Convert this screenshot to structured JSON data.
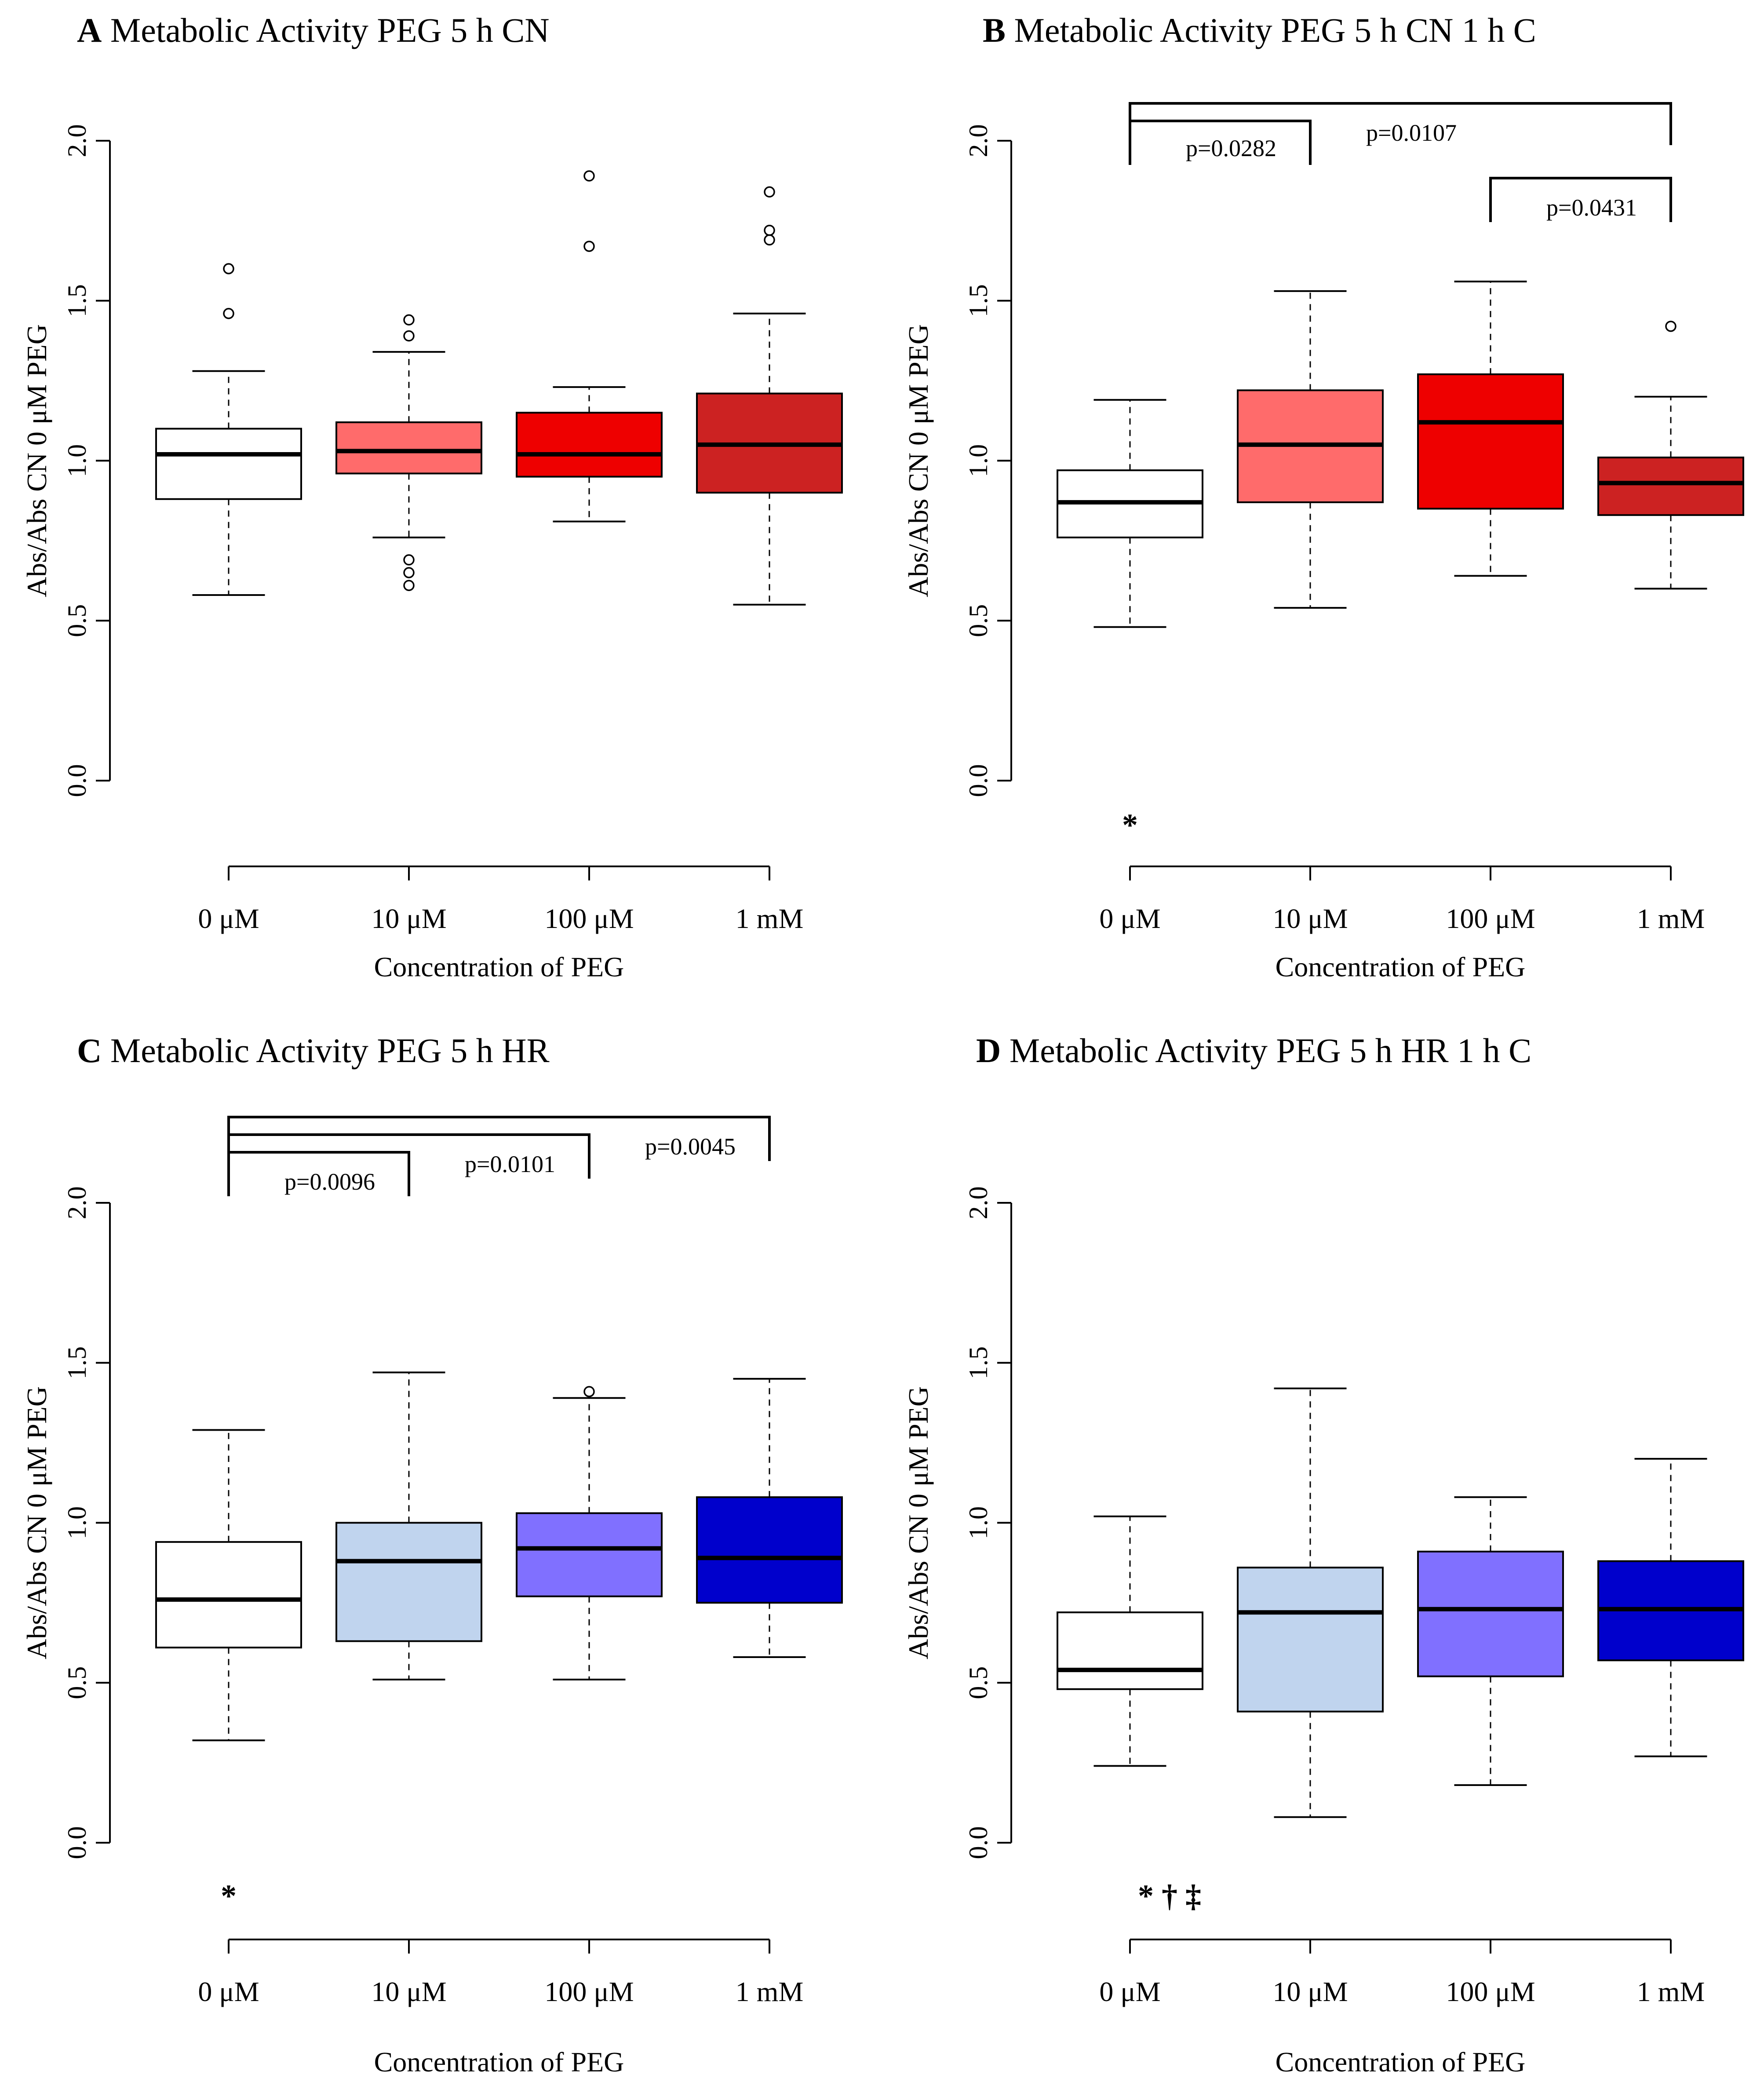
{
  "figure": {
    "ylabel": "Abs/Abs CN 0 μM PEG",
    "xlabel": "Concentration of PEG"
  },
  "chart_data": [
    {
      "type": "boxplot",
      "panel": "A",
      "title": "Metabolic Activity PEG 5 h CN",
      "xlabel": "Concentration of PEG",
      "ylabel": "Abs/Abs CN 0 μM PEG",
      "ylim": [
        0,
        2
      ],
      "yticks": [
        "0.0",
        "0.5",
        "1.0",
        "1.5",
        "2.0"
      ],
      "categories": [
        "0 μM",
        "10 μM",
        "100 μM",
        "1 mM"
      ],
      "colors": [
        "#ffffff",
        "#ff6b6b",
        "#ee0000",
        "#cc2222"
      ],
      "boxes": [
        {
          "min": 0.58,
          "q1": 0.88,
          "median": 1.02,
          "q3": 1.1,
          "max": 1.28,
          "outliers": [
            1.46,
            1.6
          ]
        },
        {
          "min": 0.76,
          "q1": 0.96,
          "median": 1.03,
          "q3": 1.12,
          "max": 1.34,
          "outliers": [
            0.61,
            0.65,
            0.69,
            1.39,
            1.44
          ]
        },
        {
          "min": 0.81,
          "q1": 0.95,
          "median": 1.02,
          "q3": 1.15,
          "max": 1.23,
          "outliers": [
            1.67,
            1.89
          ]
        },
        {
          "min": 0.55,
          "q1": 0.9,
          "median": 1.05,
          "q3": 1.21,
          "max": 1.46,
          "outliers": [
            1.69,
            1.72,
            1.84
          ]
        }
      ],
      "brackets": [],
      "markers": []
    },
    {
      "type": "boxplot",
      "panel": "B",
      "title": "Metabolic Activity PEG 5 h CN 1 h C",
      "xlabel": "Concentration of PEG",
      "ylabel": "Abs/Abs CN 0 μM PEG",
      "ylim": [
        0,
        2
      ],
      "yticks": [
        "0.0",
        "0.5",
        "1.0",
        "1.5",
        "2.0"
      ],
      "categories": [
        "0 μM",
        "10 μM",
        "100 μM",
        "1 mM"
      ],
      "colors": [
        "#ffffff",
        "#ff6b6b",
        "#ee0000",
        "#cc2222"
      ],
      "boxes": [
        {
          "min": 0.48,
          "q1": 0.76,
          "median": 0.87,
          "q3": 0.97,
          "max": 1.19,
          "outliers": []
        },
        {
          "min": 0.54,
          "q1": 0.87,
          "median": 1.05,
          "q3": 1.22,
          "max": 1.53,
          "outliers": []
        },
        {
          "min": 0.64,
          "q1": 0.85,
          "median": 1.12,
          "q3": 1.27,
          "max": 1.56,
          "outliers": []
        },
        {
          "min": 0.6,
          "q1": 0.83,
          "median": 0.93,
          "q3": 1.01,
          "max": 1.2,
          "outliers": [
            1.42
          ]
        }
      ],
      "brackets": [
        {
          "from": 0,
          "to": 3,
          "label": "p=0.0107"
        },
        {
          "from": 0,
          "to": 1,
          "label": "p=0.0282"
        },
        {
          "from": 2,
          "to": 3,
          "label": "p=0.0431"
        }
      ],
      "markers": [
        {
          "category": 0,
          "text": "*"
        }
      ]
    },
    {
      "type": "boxplot",
      "panel": "C",
      "title": "Metabolic Activity PEG 5 h HR",
      "xlabel": "Concentration of PEG",
      "ylabel": "Abs/Abs CN 0 μM PEG",
      "ylim": [
        0,
        2
      ],
      "yticks": [
        "0.0",
        "0.5",
        "1.0",
        "1.5",
        "2.0"
      ],
      "categories": [
        "0 μM",
        "10 μM",
        "100 μM",
        "1 mM"
      ],
      "colors": [
        "#ffffff",
        "#c0d4ee",
        "#8070ff",
        "#0000cc"
      ],
      "boxes": [
        {
          "min": 0.32,
          "q1": 0.61,
          "median": 0.76,
          "q3": 0.94,
          "max": 1.29,
          "outliers": []
        },
        {
          "min": 0.51,
          "q1": 0.63,
          "median": 0.88,
          "q3": 1.0,
          "max": 1.47,
          "outliers": []
        },
        {
          "min": 0.51,
          "q1": 0.77,
          "median": 0.92,
          "q3": 1.03,
          "max": 1.39,
          "outliers": [
            1.41
          ]
        },
        {
          "min": 0.58,
          "q1": 0.75,
          "median": 0.89,
          "q3": 1.08,
          "max": 1.45,
          "outliers": []
        }
      ],
      "brackets": [
        {
          "from": 0,
          "to": 3,
          "label": "p=0.0045"
        },
        {
          "from": 0,
          "to": 2,
          "label": "p=0.0101"
        },
        {
          "from": 0,
          "to": 1,
          "label": "p=0.0096"
        }
      ],
      "markers": [
        {
          "category": 0,
          "text": "*"
        }
      ]
    },
    {
      "type": "boxplot",
      "panel": "D",
      "title": "Metabolic Activity PEG 5 h HR 1 h C",
      "xlabel": "Concentration of PEG",
      "ylabel": "Abs/Abs CN 0 μM PEG",
      "ylim": [
        0,
        2
      ],
      "yticks": [
        "0.0",
        "0.5",
        "1.0",
        "1.5",
        "2.0"
      ],
      "categories": [
        "0 μM",
        "10 μM",
        "100 μM",
        "1 mM"
      ],
      "colors": [
        "#ffffff",
        "#c0d4ee",
        "#8070ff",
        "#0000cc"
      ],
      "boxes": [
        {
          "min": 0.24,
          "q1": 0.48,
          "median": 0.54,
          "q3": 0.72,
          "max": 1.02,
          "outliers": []
        },
        {
          "min": 0.08,
          "q1": 0.41,
          "median": 0.72,
          "q3": 0.86,
          "max": 1.42,
          "outliers": []
        },
        {
          "min": 0.18,
          "q1": 0.52,
          "median": 0.73,
          "q3": 0.91,
          "max": 1.08,
          "outliers": []
        },
        {
          "min": 0.27,
          "q1": 0.57,
          "median": 0.73,
          "q3": 0.88,
          "max": 1.2,
          "outliers": []
        }
      ],
      "brackets": [],
      "markers": [
        {
          "category": 0,
          "text": "* † ‡"
        }
      ]
    }
  ]
}
